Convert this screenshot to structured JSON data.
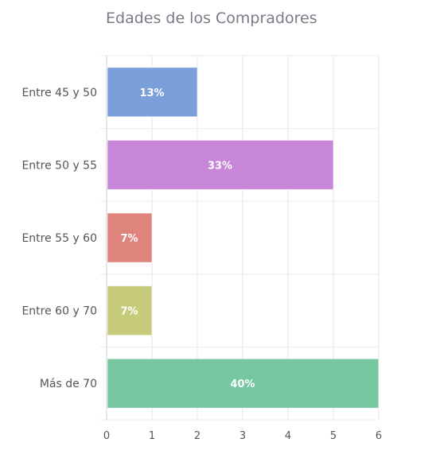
{
  "chart_data": {
    "type": "bar",
    "orientation": "horizontal",
    "title": "Edades de los Compradores",
    "categories": [
      "Entre 45 y 50",
      "Entre 50 y 55",
      "Entre 55 y 60",
      "Entre 60 y 70",
      "Más de 70"
    ],
    "values": [
      2,
      5,
      1,
      1,
      6
    ],
    "data_labels": [
      "13%",
      "33%",
      "7%",
      "7%",
      "40%"
    ],
    "colors": [
      "#7b9fdb",
      "#c886d8",
      "#df847c",
      "#c5cb7a",
      "#76c69f"
    ],
    "xlim": [
      0,
      6
    ],
    "xticks": [
      "0",
      "1",
      "2",
      "3",
      "4",
      "5",
      "6"
    ],
    "grid": true,
    "legend": "none"
  }
}
